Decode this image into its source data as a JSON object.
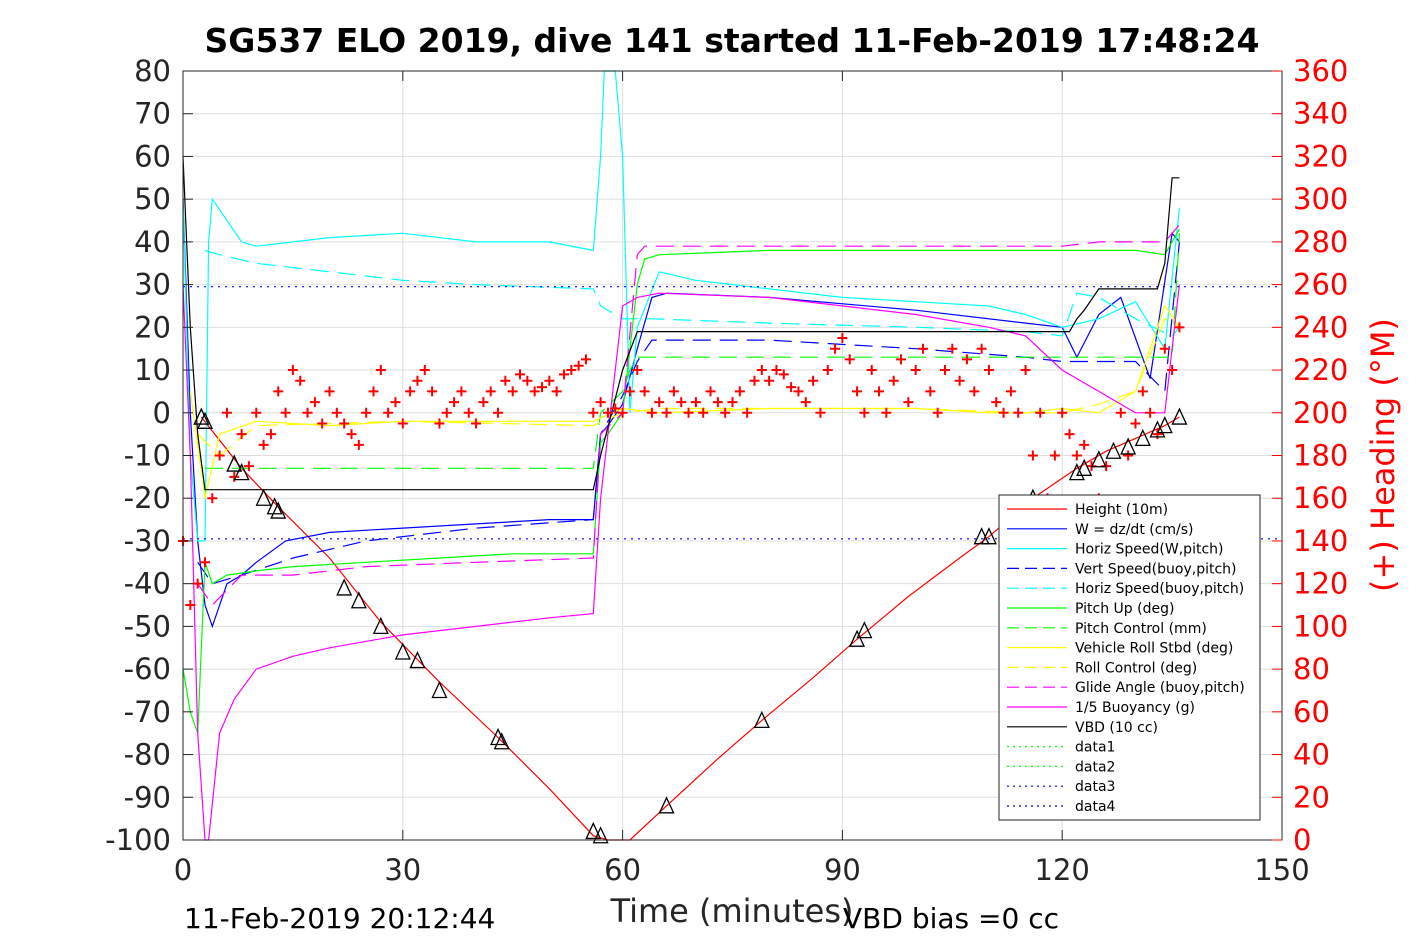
{
  "chart_data": {
    "type": "line",
    "title": "SG537 ELO 2019, dive 141 started 11-Feb-2019 17:48:24",
    "xlabel": "Time (minutes)",
    "ylabel_right": "(+) Heading (°M)",
    "xlim": [
      0,
      150
    ],
    "ylim_left": [
      -100,
      80
    ],
    "ylim_right": [
      0,
      360
    ],
    "grid": true,
    "legend_position": "lower-right",
    "x_ticks": [
      "0",
      "30",
      "60",
      "90",
      "120",
      "150"
    ],
    "y_ticks_left": [
      "80",
      "70",
      "60",
      "50",
      "40",
      "30",
      "20",
      "10",
      "0",
      "-10",
      "-20",
      "-30",
      "-40",
      "-50",
      "-60",
      "-70",
      "-80",
      "-90",
      "-100"
    ],
    "y_ticks_right": [
      "360",
      "340",
      "320",
      "300",
      "280",
      "260",
      "240",
      "220",
      "200",
      "180",
      "160",
      "140",
      "120",
      "100",
      "80",
      "60",
      "40",
      "20",
      "0"
    ],
    "footer_left": "11-Feb-2019 20:12:44",
    "footer_right": "VBD bias =0 cc",
    "series": [
      {
        "name": "Height (10m)",
        "color": "#ff0000",
        "style": "solid",
        "x": [
          2.5,
          8,
          13,
          20,
          27,
          35,
          43,
          50,
          56,
          58,
          61,
          66,
          73,
          79,
          86,
          92,
          99,
          106,
          110,
          116,
          122,
          126,
          130,
          134,
          136
        ],
        "y": [
          -1,
          -13,
          -22,
          -34,
          -49,
          -63,
          -76,
          -88,
          -99,
          -100,
          -100,
          -92,
          -81,
          -72,
          -62,
          -53,
          -43,
          -34,
          -29,
          -20,
          -13,
          -9,
          -6,
          -3,
          -1
        ]
      },
      {
        "name": "W = dz/dt (cm/s)",
        "color": "#0000ff",
        "style": "solid",
        "x": [
          0,
          1,
          2,
          3,
          4,
          6,
          8,
          10,
          14,
          20,
          30,
          40,
          50,
          56,
          57,
          58,
          60,
          62,
          64,
          66,
          80,
          100,
          115,
          120,
          122,
          125,
          128,
          132,
          135,
          136
        ],
        "y": [
          50,
          0,
          -30,
          -45,
          -50,
          -40,
          -38,
          -35,
          -30,
          -28,
          -27,
          -26,
          -25,
          -25,
          -5,
          -3,
          2,
          15,
          27,
          28,
          27,
          24,
          21,
          20,
          13,
          23,
          27,
          8,
          42,
          40
        ]
      },
      {
        "name": "Horiz Speed(W,pitch)",
        "color": "#00ffff",
        "style": "solid",
        "x": [
          0,
          1,
          2,
          3,
          3.5,
          4,
          6,
          8,
          10,
          15,
          20,
          30,
          40,
          50,
          56,
          57,
          57.5,
          58,
          59,
          60,
          61,
          62,
          65,
          70,
          80,
          90,
          100,
          110,
          115,
          120,
          125,
          130,
          134,
          136
        ],
        "y": [
          50,
          -10,
          -30,
          -30,
          40,
          50,
          45,
          40,
          39,
          40,
          41,
          42,
          40,
          40,
          38,
          60,
          80,
          80,
          80,
          60,
          0,
          20,
          33,
          31,
          29,
          27,
          26,
          25,
          23,
          20,
          22,
          26,
          15,
          48
        ]
      },
      {
        "name": "Vert Speed(buoy,pitch)",
        "color": "#0000ff",
        "style": "dash",
        "x": [
          2,
          4,
          8,
          15,
          25,
          40,
          56,
          57,
          60,
          62,
          64,
          80,
          100,
          115,
          120,
          130,
          134,
          136
        ],
        "y": [
          -35,
          -40,
          -38,
          -34,
          -30,
          -27,
          -25,
          -5,
          4,
          12,
          17,
          17,
          15,
          13,
          12,
          12,
          5,
          40
        ]
      },
      {
        "name": "Horiz Speed(buoy,pitch)",
        "color": "#00ffff",
        "style": "dash",
        "x": [
          3,
          5,
          10,
          20,
          30,
          40,
          56,
          57,
          60,
          62,
          64,
          80,
          100,
          115,
          120,
          122,
          125,
          130,
          135,
          136
        ],
        "y": [
          38,
          37,
          35,
          33,
          31,
          30,
          29,
          25,
          22,
          22,
          22,
          21,
          20,
          19,
          18,
          28,
          27,
          22,
          18,
          20
        ]
      },
      {
        "name": "Pitch Up (deg)",
        "color": "#00ff00",
        "style": "solid",
        "x": [
          0,
          1,
          2,
          3,
          4,
          6,
          10,
          15,
          25,
          35,
          45,
          56,
          57,
          58,
          60,
          62,
          63,
          65,
          80,
          100,
          115,
          120,
          125,
          130,
          134,
          136
        ],
        "y": [
          -60,
          -70,
          -75,
          -35,
          -40,
          -38,
          -37,
          -36,
          -35,
          -34,
          -33,
          -33,
          -7,
          -5,
          0,
          30,
          36,
          37,
          38,
          38,
          38,
          38,
          38,
          38,
          37,
          43
        ]
      },
      {
        "name": "Pitch Control (mm)",
        "color": "#00ff00",
        "style": "dash",
        "x": [
          3,
          56,
          57,
          60,
          61,
          62,
          135,
          136
        ],
        "y": [
          -13,
          -13,
          0,
          5,
          10,
          13,
          13,
          42
        ]
      },
      {
        "name": "Vehicle Roll Stbd (deg)",
        "color": "#ffff00",
        "style": "solid",
        "x": [
          1,
          3,
          5,
          10,
          20,
          30,
          40,
          50,
          56,
          60,
          65,
          80,
          100,
          110,
          115,
          120,
          125,
          130,
          134,
          136
        ],
        "y": [
          5,
          -20,
          -5,
          -2,
          -3,
          -2,
          -2,
          -2,
          -2,
          1,
          0,
          1,
          1,
          0,
          0,
          1,
          0,
          5,
          25,
          20
        ]
      },
      {
        "name": "Roll Control (deg)",
        "color": "#ffff00",
        "style": "dash",
        "x": [
          2,
          5,
          10,
          30,
          56,
          60,
          65,
          100,
          115,
          120,
          125,
          130,
          134,
          136
        ],
        "y": [
          -5,
          -10,
          -3,
          -2,
          -3,
          0,
          1,
          1,
          0,
          0,
          2,
          5,
          22,
          20
        ]
      },
      {
        "name": "Glide Angle (buoy,pitch)",
        "color": "#ff00ff",
        "style": "dash",
        "x": [
          2,
          4,
          8,
          15,
          25,
          40,
          56,
          57,
          60,
          62,
          63,
          80,
          100,
          120,
          125,
          130,
          134,
          136
        ],
        "y": [
          -40,
          -45,
          -38,
          -38,
          -36,
          -35,
          -34,
          -5,
          0,
          37,
          39,
          39,
          39,
          39,
          40,
          40,
          40,
          44
        ]
      },
      {
        "name": "1/5 Buoyancy (g)",
        "color": "#ff00ff",
        "style": "solid",
        "x": [
          0,
          1,
          2,
          3,
          3.5,
          5,
          7,
          10,
          15,
          20,
          30,
          40,
          50,
          56,
          57,
          60,
          62,
          65,
          80,
          100,
          110,
          115,
          120,
          125,
          130,
          134,
          136
        ],
        "y": [
          30,
          -10,
          -75,
          -100,
          -100,
          -75,
          -67,
          -60,
          -57,
          -55,
          -52,
          -50,
          -48,
          -47,
          -20,
          25,
          27,
          28,
          27,
          23,
          20,
          18,
          10,
          5,
          0,
          0,
          30
        ]
      },
      {
        "name": "VBD (10 cc)",
        "color": "#000000",
        "style": "solid",
        "x": [
          0,
          1,
          2,
          3,
          10,
          56,
          57,
          60,
          62,
          63,
          65,
          120,
          121,
          122,
          123,
          125,
          130,
          133,
          134,
          135,
          136
        ],
        "y": [
          60,
          20,
          -5,
          -18,
          -18,
          -18,
          -10,
          10,
          19,
          19,
          19,
          19,
          19,
          22,
          24,
          29,
          29,
          29,
          35,
          55,
          55
        ]
      },
      {
        "name": "data1",
        "color": "#00ff00",
        "style": "dot",
        "x": [],
        "y": []
      },
      {
        "name": "data2",
        "color": "#00ff00",
        "style": "dot",
        "x": [],
        "y": []
      },
      {
        "name": "data3",
        "color": "#0000ff",
        "style": "dot",
        "x": [
          0,
          150
        ],
        "y": [
          29.5,
          29.5
        ]
      },
      {
        "name": "data4",
        "color": "#0000ff",
        "style": "dot",
        "x": [
          0,
          150
        ],
        "y": [
          -29.5,
          -29.5
        ]
      }
    ],
    "heading": {
      "color": "#ff0000",
      "x": [
        0,
        1,
        2,
        3,
        4,
        5,
        6,
        7,
        8,
        9,
        10,
        11,
        12,
        13,
        14,
        15,
        16,
        17,
        18,
        19,
        20,
        21,
        22,
        23,
        24,
        25,
        26,
        27,
        28,
        29,
        30,
        31,
        32,
        33,
        34,
        35,
        36,
        37,
        38,
        39,
        40,
        41,
        42,
        43,
        44,
        45,
        46,
        47,
        48,
        49,
        50,
        51,
        52,
        53,
        54,
        55,
        56,
        57,
        58,
        59,
        60,
        61,
        62,
        63,
        64,
        65,
        66,
        67,
        68,
        69,
        70,
        71,
        72,
        73,
        74,
        75,
        76,
        77,
        78,
        79,
        80,
        81,
        82,
        83,
        84,
        85,
        86,
        87,
        88,
        89,
        90,
        91,
        92,
        93,
        94,
        95,
        96,
        97,
        98,
        99,
        100,
        101,
        102,
        103,
        104,
        105,
        106,
        107,
        108,
        109,
        110,
        111,
        112,
        113,
        114,
        115,
        116,
        117,
        118,
        119,
        120,
        121,
        122,
        123,
        124,
        125,
        126,
        127,
        128,
        129,
        130,
        131,
        132,
        133,
        134,
        135,
        136
      ],
      "y": [
        140,
        110,
        120,
        130,
        160,
        180,
        200,
        170,
        190,
        175,
        200,
        185,
        190,
        210,
        200,
        220,
        215,
        200,
        205,
        195,
        210,
        200,
        195,
        190,
        185,
        200,
        210,
        220,
        200,
        205,
        195,
        210,
        215,
        220,
        210,
        195,
        200,
        205,
        210,
        200,
        195,
        205,
        210,
        200,
        215,
        210,
        218,
        215,
        210,
        212,
        215,
        210,
        218,
        220,
        222,
        225,
        200,
        205,
        200,
        202,
        200,
        210,
        220,
        210,
        200,
        205,
        200,
        210,
        205,
        200,
        205,
        200,
        210,
        205,
        200,
        205,
        210,
        200,
        215,
        220,
        215,
        220,
        218,
        212,
        210,
        205,
        215,
        200,
        220,
        230,
        235,
        225,
        210,
        200,
        220,
        210,
        200,
        215,
        225,
        205,
        220,
        230,
        210,
        200,
        220,
        230,
        215,
        225,
        210,
        230,
        220,
        205,
        200,
        210,
        200,
        220,
        180,
        200,
        160,
        180,
        200,
        190,
        180,
        185,
        175,
        160,
        175,
        150,
        200,
        180,
        195,
        210,
        200,
        190,
        230,
        220,
        240
      ]
    },
    "markers": {
      "x": [
        2.5,
        3,
        7,
        8,
        11,
        12.5,
        13,
        22,
        24,
        27,
        30,
        32,
        35,
        43,
        43.5,
        56,
        57,
        66,
        79,
        92,
        93,
        109,
        110,
        116,
        122,
        123,
        125,
        127,
        129,
        131,
        133,
        134,
        136
      ],
      "y": [
        -1,
        -2,
        -12,
        -14,
        -20,
        -22,
        -23,
        -41,
        -44,
        -50,
        -56,
        -58,
        -65,
        -76,
        -77,
        -98,
        -99,
        -92,
        -72,
        -53,
        -51,
        -29,
        -29,
        -20,
        -14,
        -13,
        -11,
        -9,
        -8,
        -6,
        -4,
        -3,
        -1
      ]
    }
  }
}
